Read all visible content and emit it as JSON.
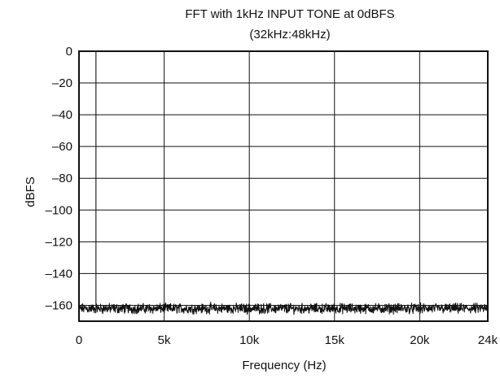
{
  "chart_data": {
    "type": "line",
    "title": "FFT with 1kHz INPUT TONE at 0dBFS",
    "subtitle": "(32kHz:48kHz)",
    "xlabel": "Frequency (Hz)",
    "ylabel": "dBFS",
    "xlim": [
      0,
      24000
    ],
    "ylim": [
      -170,
      0
    ],
    "x_ticks": [
      0,
      5000,
      10000,
      15000,
      20000,
      24000
    ],
    "x_tick_labels": [
      "0",
      "5k",
      "10k",
      "15k",
      "20k",
      "24k"
    ],
    "y_ticks": [
      0,
      -20,
      -40,
      -60,
      -80,
      -100,
      -120,
      -140,
      -160
    ],
    "y_tick_labels": [
      "0",
      "–20",
      "–40",
      "–60",
      "–80",
      "–100",
      "–120",
      "–140",
      "–160"
    ],
    "grid": true,
    "series": [
      {
        "tone": {
          "x": 1000,
          "y": 0
        },
        "noise_floor_db": -162,
        "noise_range_db": [
          -166,
          -157
        ]
      }
    ],
    "colors": {
      "line": "#111111",
      "grid": "#111111",
      "background": "#ffffff"
    }
  }
}
